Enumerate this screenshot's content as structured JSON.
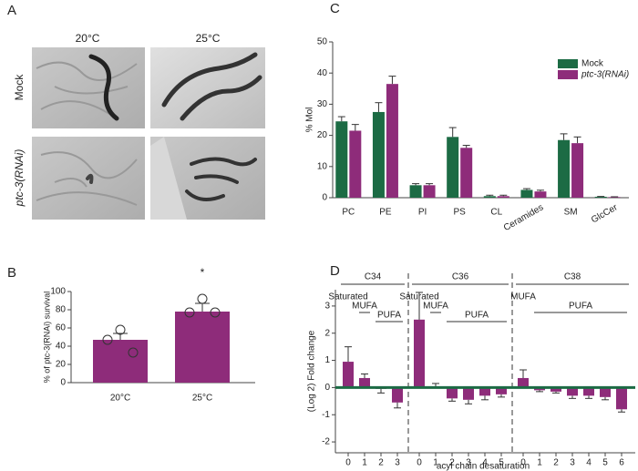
{
  "panel_a": {
    "letter": "A",
    "columns": [
      "20°C",
      "25°C"
    ],
    "rows": [
      "Mock",
      "ptc-3(RNAi)"
    ]
  },
  "chart_data": [
    {
      "type": "bar",
      "panel": "B",
      "ylabel": "% of ptc-3(RNAi) survival",
      "annotation": "*",
      "categories": [
        "20°C",
        "25°C"
      ],
      "values": [
        47,
        78
      ],
      "errors": [
        7,
        9
      ],
      "points": [
        [
          58,
          47,
          33
        ],
        [
          92,
          77,
          77
        ]
      ],
      "color": "#8e2c7a",
      "ylim": [
        0,
        100
      ],
      "yticks": [
        0,
        20,
        40,
        60,
        80,
        100
      ]
    },
    {
      "type": "grouped_bar",
      "panel": "C",
      "ylabel": "% Mol",
      "categories": [
        "PC",
        "PE",
        "PI",
        "PS",
        "CL",
        "Ceramides",
        "SM",
        "GlcCer"
      ],
      "series": [
        {
          "name": "Mock",
          "color": "#1c6b44",
          "values": [
            24.5,
            27.5,
            4,
            19.5,
            0.5,
            2.5,
            18.5,
            0.3
          ],
          "errors": [
            1.5,
            3,
            0.5,
            3,
            0.3,
            0.4,
            2,
            0.1
          ]
        },
        {
          "name": "ptc-3(RNAi)",
          "color": "#8e2c7a",
          "values": [
            21.5,
            36.5,
            4,
            16,
            0.5,
            2,
            17.5,
            0.2
          ],
          "errors": [
            2,
            2.5,
            0.5,
            0.8,
            0.3,
            0.4,
            2,
            0.1
          ]
        }
      ],
      "ylim": [
        0,
        50
      ],
      "yticks": [
        0,
        10,
        20,
        30,
        40,
        50
      ],
      "legend": "upper right"
    },
    {
      "type": "segmented_bar",
      "panel": "D",
      "ylabel": "(Log 2) Fold change",
      "xlabel": "acyl chain desaturation",
      "color": "#8e2c7a",
      "baseline_color": "#1c6b44",
      "groups": [
        {
          "name": "C34",
          "subgroups": [
            "Saturated",
            "MUFA",
            "PUFA"
          ],
          "categories": [
            "0",
            "1",
            "2",
            "3"
          ],
          "values": [
            0.95,
            0.35,
            -0.05,
            -0.55
          ],
          "errors": [
            0.55,
            0.15,
            0.15,
            0.2
          ]
        },
        {
          "name": "C36",
          "subgroups": [
            "Saturated",
            "MUFA",
            "PUFA"
          ],
          "categories": [
            "0",
            "1",
            "2",
            "3",
            "4",
            "5"
          ],
          "values": [
            2.5,
            0.0,
            -0.4,
            -0.45,
            -0.3,
            -0.25
          ],
          "errors": [
            1.0,
            0.15,
            0.1,
            0.15,
            0.15,
            0.1
          ]
        },
        {
          "name": "C38",
          "subgroups": [
            "MUFA",
            "PUFA"
          ],
          "categories": [
            "0",
            "1",
            "2",
            "3",
            "4",
            "5",
            "6"
          ],
          "values": [
            0.35,
            -0.1,
            -0.15,
            -0.3,
            -0.3,
            -0.35,
            -0.8
          ],
          "errors": [
            0.3,
            0.05,
            0.05,
            0.1,
            0.1,
            0.1,
            0.1
          ]
        }
      ],
      "ylim": [
        -2.4,
        3.6
      ],
      "yticks": [
        -2,
        -1,
        0,
        1,
        2,
        3
      ]
    }
  ]
}
